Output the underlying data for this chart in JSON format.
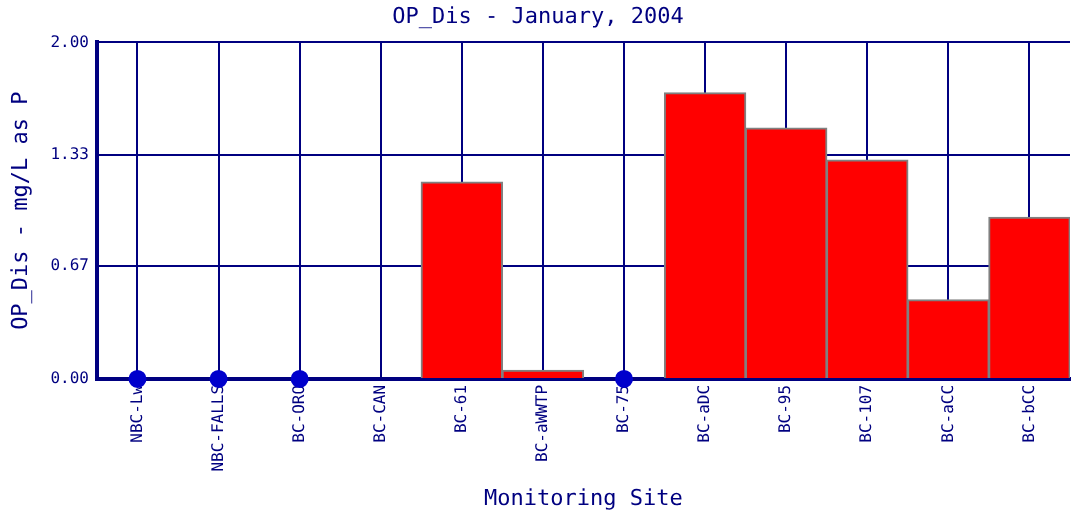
{
  "chart_data": {
    "type": "bar",
    "title": "OP_Dis - January, 2004",
    "xlabel": "Monitoring Site",
    "ylabel": "OP_Dis - mg/L as P",
    "categories": [
      "NBC-Lw",
      "NBC-FALLS",
      "BC-ORO",
      "BC-CAN",
      "BC-61",
      "BC-aWWTP",
      "BC-75",
      "BC-aDC",
      "BC-95",
      "BC-107",
      "BC-aCC",
      "BC-bCC"
    ],
    "series": [
      {
        "color": "#ff0000",
        "values": [
          null,
          null,
          null,
          0,
          1.17,
          0.05,
          null,
          1.7,
          1.49,
          1.3,
          0.47,
          0.96
        ]
      },
      {
        "type": "scatter",
        "color": "#0000cc",
        "x": [
          "NBC-Lw",
          "NBC-FALLS",
          "BC-ORO",
          "BC-75"
        ],
        "values": [
          0,
          0,
          0,
          0
        ]
      }
    ],
    "ylim": [
      0,
      2
    ],
    "yticks": [
      {
        "value": 0,
        "label": "0.00"
      },
      {
        "value": 0.67,
        "label": "0.67"
      },
      {
        "value": 1.33,
        "label": "1.33"
      },
      {
        "value": 2,
        "label": "2.00"
      }
    ],
    "grid": true,
    "legend": false,
    "marker": "circle"
  }
}
